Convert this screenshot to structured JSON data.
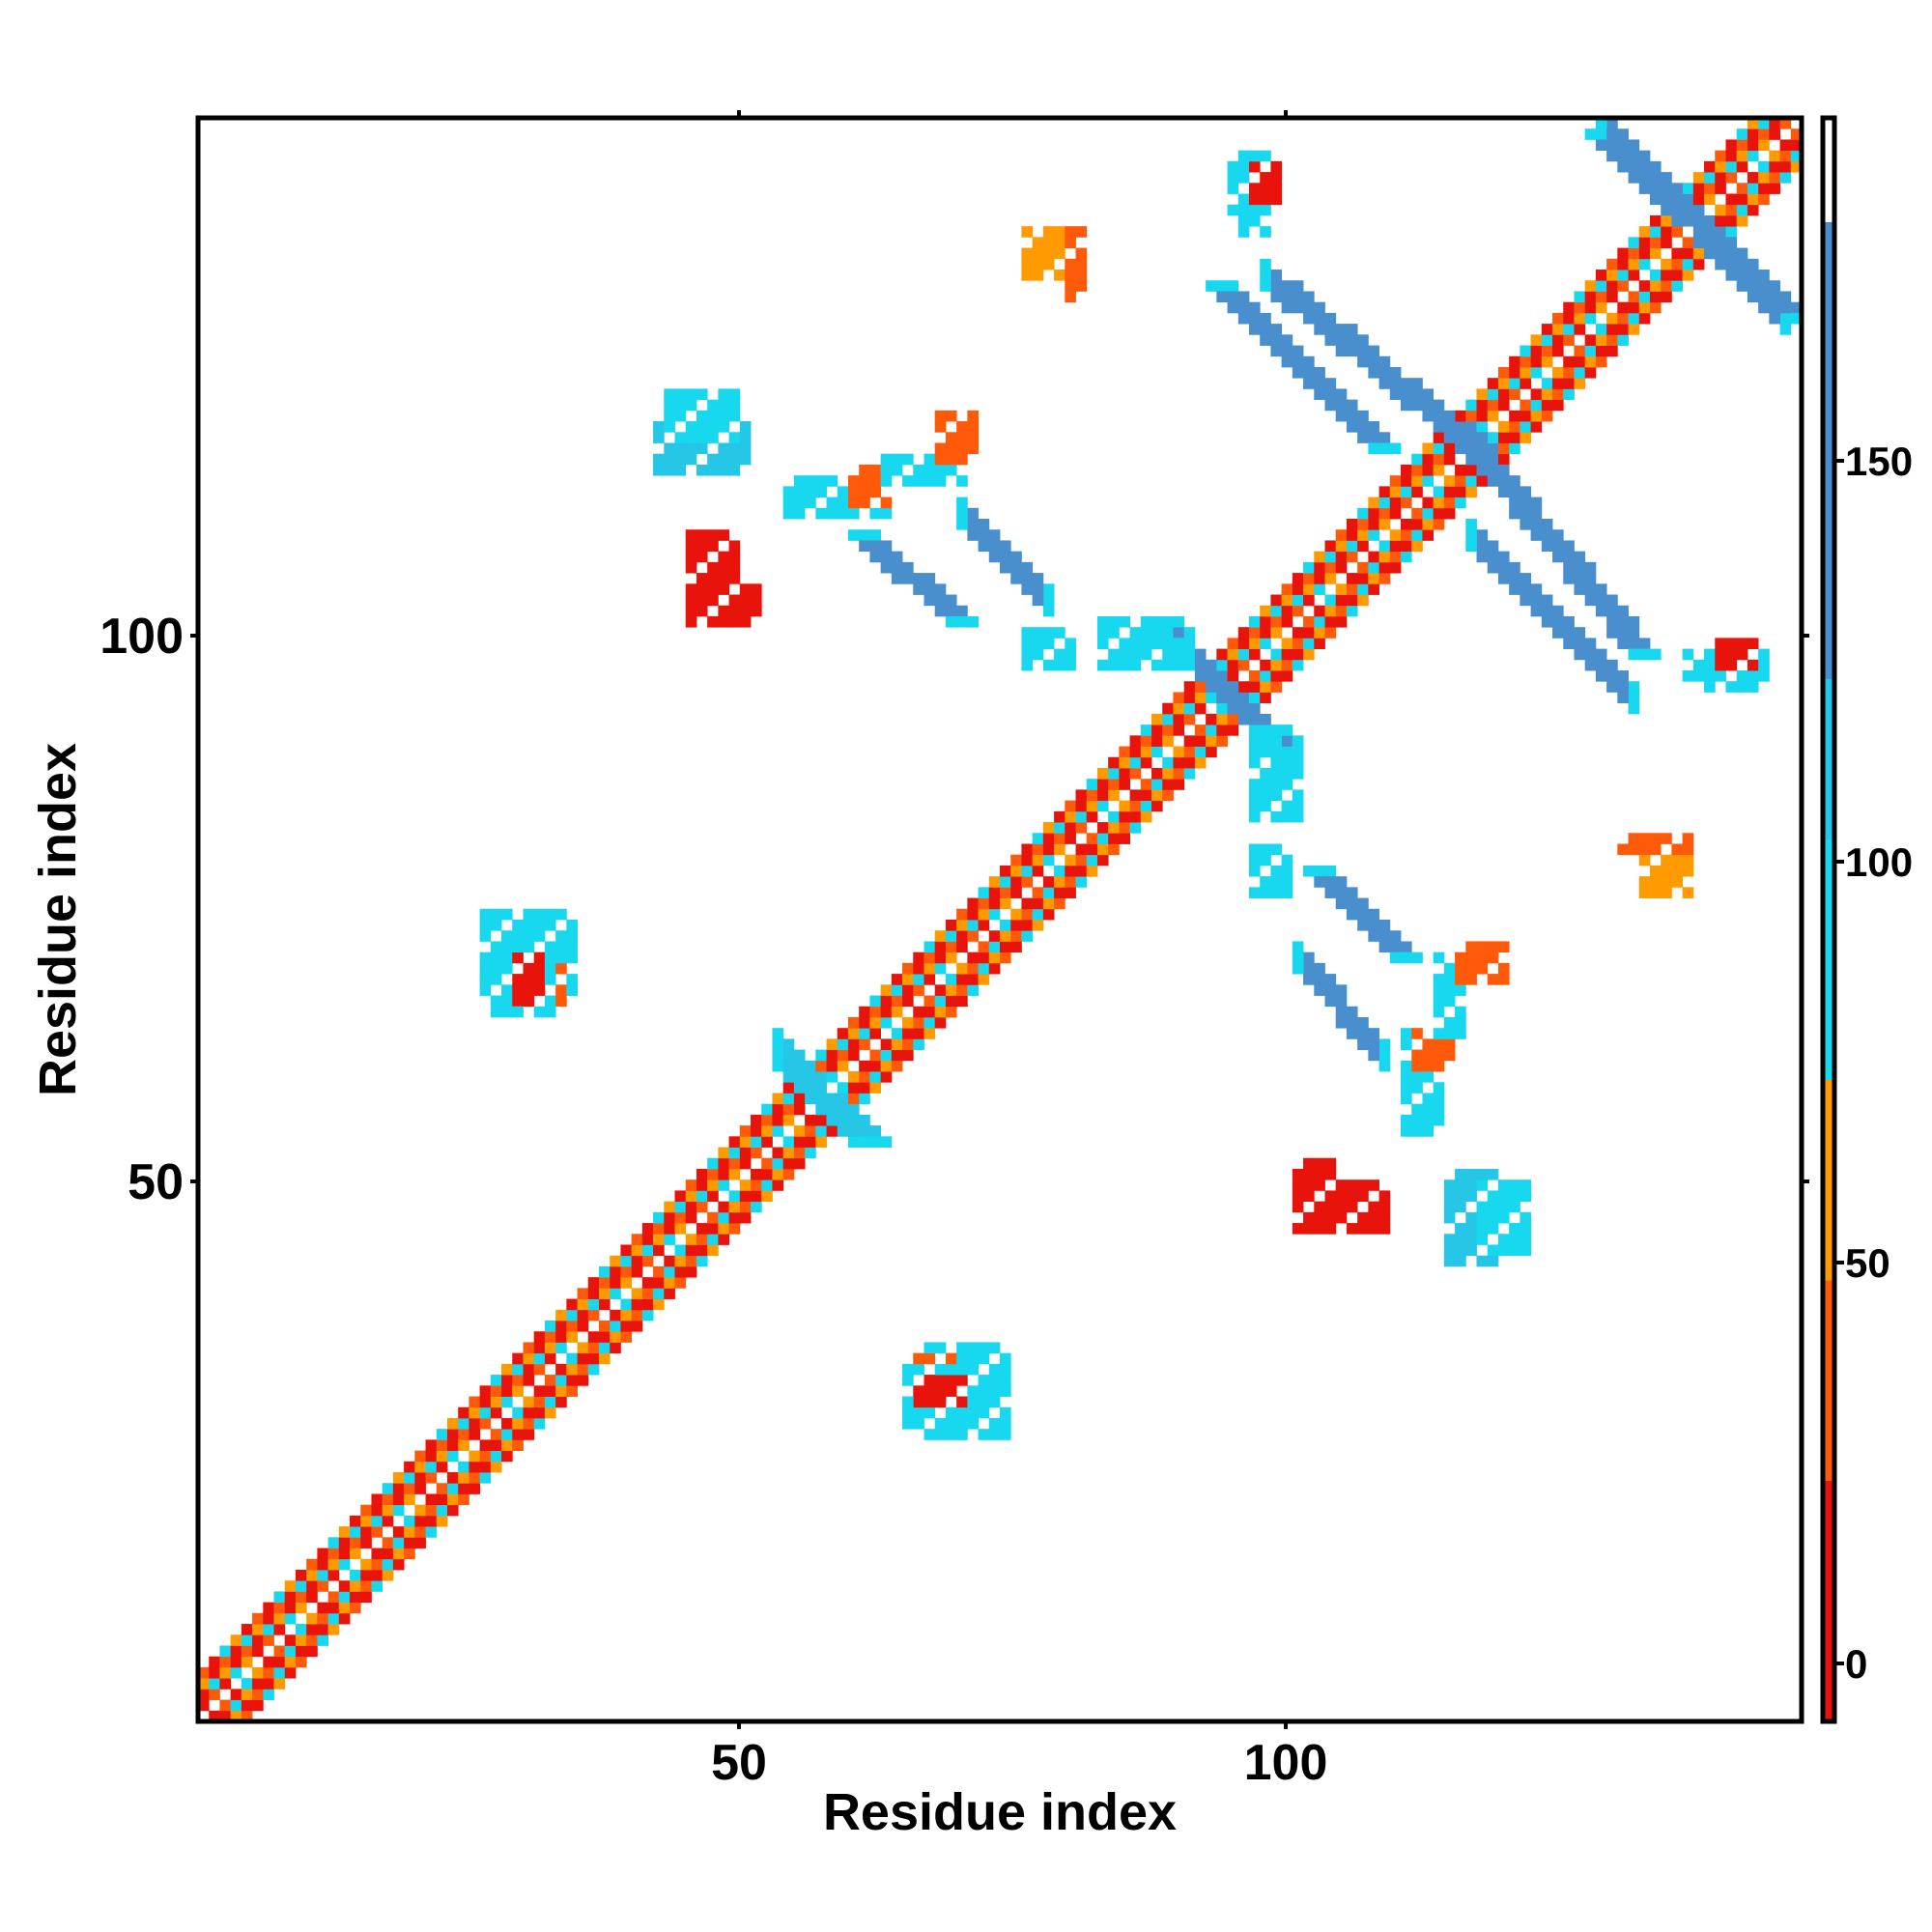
{
  "chart_data": {
    "type": "heatmap",
    "title": "",
    "xlabel": "Residue index",
    "ylabel": "Residue index",
    "xlim": [
      1,
      148
    ],
    "ylim": [
      1,
      148
    ],
    "x_ticks": [
      50,
      100
    ],
    "y_ticks": [
      50,
      100
    ],
    "x_tick_labels": [
      "50",
      "100"
    ],
    "y_tick_labels": [
      "50",
      "100"
    ],
    "grid": false,
    "colorbar": {
      "position": "right",
      "range": [
        -5,
        195
      ],
      "ticks": [
        0,
        50,
        100,
        150
      ],
      "tick_labels": [
        "0",
        "50",
        "100",
        "150"
      ],
      "bands": [
        {
          "from": -5,
          "to": 25,
          "color": "#e8140c"
        },
        {
          "from": 25,
          "to": 50,
          "color": "#ff5a0a"
        },
        {
          "from": 50,
          "to": 75,
          "color": "#ff9a00"
        },
        {
          "from": 75,
          "to": 105,
          "color": "#17d8ee"
        },
        {
          "from": 105,
          "to": 125,
          "color": "#25c6e6"
        },
        {
          "from": 125,
          "to": 182,
          "color": "#4a8fcd"
        },
        {
          "from": 182,
          "to": 195,
          "color": "#ffffff"
        }
      ]
    },
    "diagonal_band": {
      "from_residue": 1,
      "to_residue": 148,
      "half_width_residues": 4,
      "value_pattern": [
        10,
        60,
        40,
        95,
        20
      ]
    },
    "contact_segments": [
      {
        "x": [
          89,
          101
        ],
        "y": [
          102,
          90
        ],
        "value": 150
      },
      {
        "x": [
          117,
          134
        ],
        "y": [
          120,
          99
        ],
        "value": 150
      },
      {
        "x": [
          95,
          110
        ],
        "y": [
          133,
          118
        ],
        "value": 150
      },
      {
        "x": [
          130,
          148
        ],
        "y": [
          147,
          130
        ],
        "value": 150
      },
      {
        "x": [
          62,
          71
        ],
        "y": [
          110,
          102
        ],
        "value": 150
      },
      {
        "x": [
          104,
          112
        ],
        "y": [
          79,
          71
        ],
        "value": 150
      },
      {
        "x": [
          55,
          63
        ],
        "y": [
          61,
          54
        ],
        "value": 120
      }
    ],
    "contact_patches": [
      {
        "x": [
          27,
          35
        ],
        "y": [
          75,
          68
        ],
        "value": 100
      },
      {
        "x": [
          29,
          34
        ],
        "y": [
          70,
          67
        ],
        "value": 30
      },
      {
        "x": [
          66,
          74
        ],
        "y": [
          33,
          28
        ],
        "value": 100
      },
      {
        "x": [
          67,
          71
        ],
        "y": [
          32,
          30
        ],
        "value": 20
      },
      {
        "x": [
          43,
          51
        ],
        "y": [
          120,
          116
        ],
        "value": 110
      },
      {
        "x": [
          46,
          52
        ],
        "y": [
          105,
          102
        ],
        "value": 20
      },
      {
        "x": [
          55,
          64
        ],
        "y": [
          115,
          112
        ],
        "value": 100
      },
      {
        "x": [
          61,
          64
        ],
        "y": [
          116,
          113
        ],
        "value": 40
      },
      {
        "x": [
          77,
          80
        ],
        "y": [
          138,
          134
        ],
        "value": 50
      },
      {
        "x": [
          96,
          100
        ],
        "y": [
          144,
          140
        ],
        "value": 100
      },
      {
        "x": [
          77,
          81
        ],
        "y": [
          101,
          98
        ],
        "value": 100
      },
      {
        "x": [
          98,
          102
        ],
        "y": [
          92,
          84
        ],
        "value": 100
      },
      {
        "x": [
          115,
          117
        ],
        "y": [
          71,
          64
        ],
        "value": 100
      },
      {
        "x": [
          117,
          121
        ],
        "y": [
          72,
          69
        ],
        "value": 40
      },
      {
        "x": [
          106,
          110
        ],
        "y": [
          50,
          46
        ],
        "value": 20
      },
      {
        "x": [
          119,
          123
        ],
        "y": [
          50,
          44
        ],
        "value": 100
      },
      {
        "x": [
          132,
          138
        ],
        "y": [
          82,
          81
        ],
        "value": 30
      },
      {
        "x": [
          138,
          145
        ],
        "y": [
          99,
          97
        ],
        "value": 100
      },
      {
        "x": [
          141,
          144
        ],
        "y": [
          100,
          98
        ],
        "value": 20
      }
    ],
    "mirror_symmetric": true
  }
}
